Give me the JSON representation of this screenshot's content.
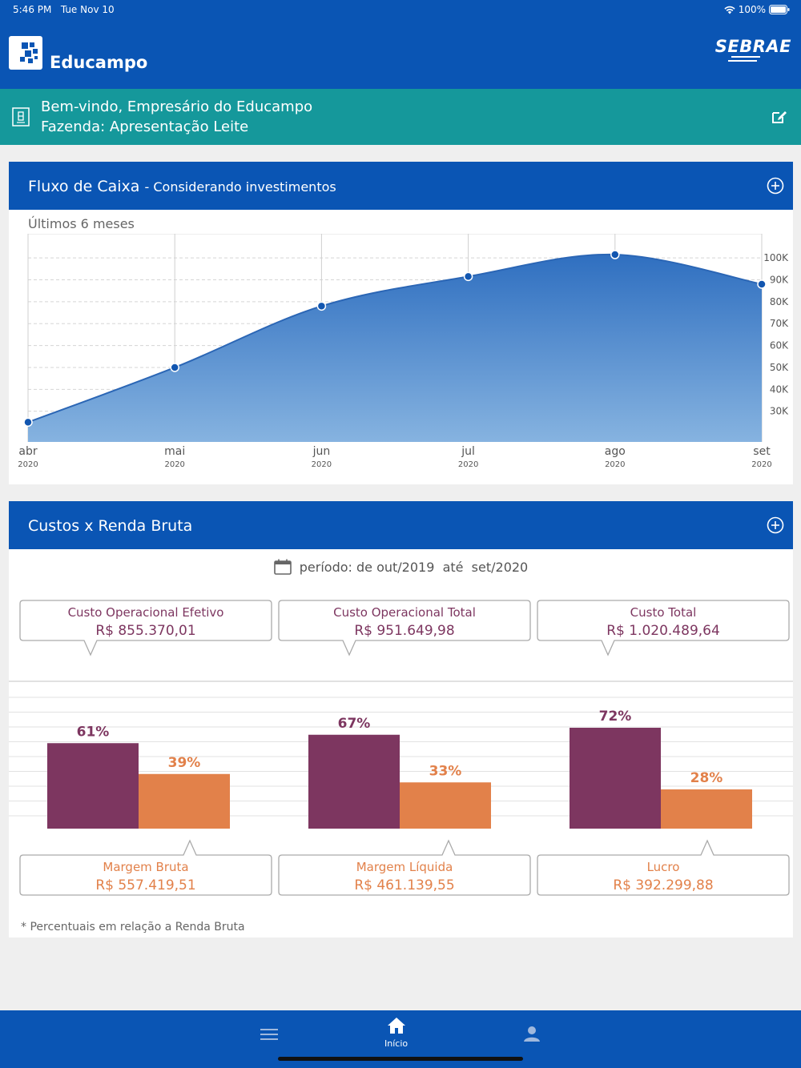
{
  "status_bar": {
    "time": "5:46 PM",
    "date": "Tue Nov 10",
    "battery": "100%"
  },
  "header": {
    "app_name": "Educampo",
    "partner": "SEBRAE"
  },
  "welcome": {
    "line1": "Bem-vindo, Empresário do Educampo",
    "line2": "Fazenda: Apresentação Leite"
  },
  "cash_flow": {
    "title": "Fluxo de Caixa",
    "subtitle": "- Considerando investimentos",
    "period_label": "Últimos 6 meses"
  },
  "costs": {
    "title": "Custos x Renda Bruta",
    "period": "período: de out/2019  até  set/2020",
    "top_boxes": [
      {
        "label": "Custo Operacional Efetivo",
        "value": "R$ 855.370,01"
      },
      {
        "label": "Custo Operacional Total",
        "value": "R$ 951.649,98"
      },
      {
        "label": "Custo Total",
        "value": "R$ 1.020.489,64"
      }
    ],
    "bottom_boxes": [
      {
        "label": "Margem Bruta",
        "value": "R$ 557.419,51"
      },
      {
        "label": "Margem Líquida",
        "value": "R$ 461.139,55"
      },
      {
        "label": "Lucro",
        "value": "R$ 392.299,88"
      }
    ],
    "footnote": "* Percentuais em relação a Renda Bruta"
  },
  "tabbar": {
    "home_label": "Início"
  },
  "colors": {
    "primary": "#0a55b4",
    "teal": "#15989b",
    "cost": "#7d3660",
    "margin": "#e2814a"
  },
  "chart_data": [
    {
      "type": "area",
      "x": [
        "abr 2020",
        "mai 2020",
        "jun 2020",
        "jul 2020",
        "ago 2020",
        "set 2020"
      ],
      "x_tick_labels": [
        "abr",
        "mai",
        "jun",
        "jul",
        "ago",
        "set"
      ],
      "x_tick_sublabels": [
        "2020",
        "2020",
        "2020",
        "2020",
        "2020",
        "2020"
      ],
      "values": [
        25000,
        50000,
        78000,
        91500,
        101500,
        88000
      ],
      "y_ticks": [
        "100K",
        "90K",
        "80K",
        "70K",
        "60K",
        "50K",
        "40K",
        "30K"
      ],
      "ylim": [
        16000,
        111000
      ],
      "grid": true
    },
    {
      "type": "bar",
      "categories": [
        "Custo Operacional Efetivo / Margem Bruta",
        "Custo Operacional Total / Margem Líquida",
        "Custo Total / Lucro"
      ],
      "series": [
        {
          "values": [
            61,
            67,
            72
          ],
          "labels": [
            "61%",
            "67%",
            "72%"
          ]
        },
        {
          "values": [
            39,
            33,
            28
          ],
          "labels": [
            "39%",
            "33%",
            "28%"
          ]
        }
      ],
      "ylim": [
        0,
        100
      ],
      "grid": true
    }
  ]
}
